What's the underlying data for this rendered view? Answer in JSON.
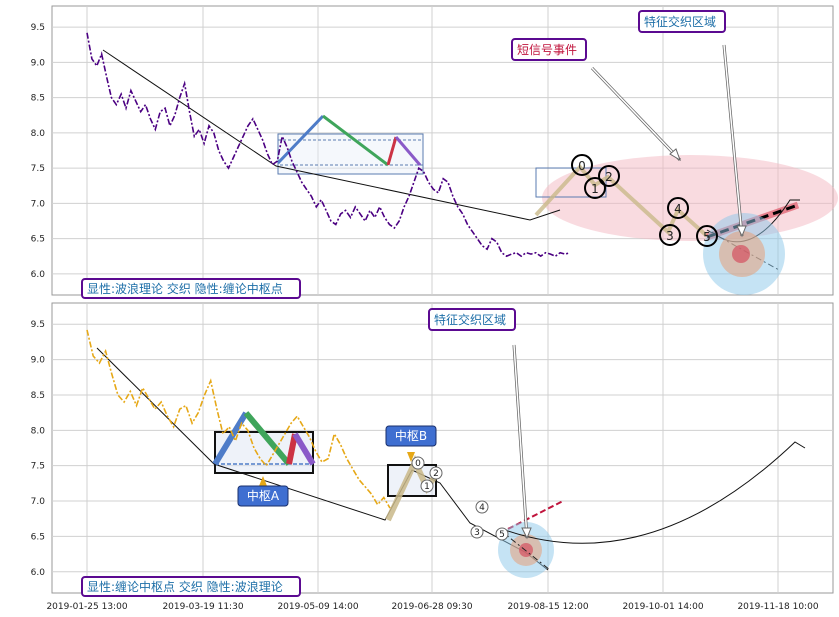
{
  "chart_data": [
    {
      "type": "line",
      "legend_text": "显性:波浪理论 交织 隐性:缠论中枢点",
      "annotations": [
        "特征交织区域",
        "短信号事件"
      ],
      "wave_labels": [
        "0",
        "1",
        "2",
        "3",
        "4",
        "5"
      ],
      "ylim": [
        5.7,
        9.8
      ],
      "yticks": [
        "6.0",
        "6.5",
        "7.0",
        "7.5",
        "8.0",
        "8.5",
        "9.0",
        "9.5"
      ],
      "price_series": {
        "name": "",
        "x": [
          0,
          2,
          4,
          6,
          8,
          10,
          12,
          14,
          16,
          18,
          20,
          22,
          24,
          26,
          28,
          30,
          32,
          34,
          36,
          38,
          40,
          42,
          44,
          46,
          48,
          50,
          52,
          54,
          56,
          58,
          60,
          62,
          64,
          66,
          68,
          70,
          72,
          74,
          76,
          78,
          80,
          82,
          84,
          86,
          88,
          90,
          92,
          94,
          96,
          98,
          100,
          102,
          104,
          106,
          108,
          110,
          112,
          114,
          116,
          118,
          120,
          122,
          124,
          126,
          128,
          130,
          132,
          134,
          136,
          138,
          140,
          142,
          144,
          146,
          148,
          150,
          152,
          154,
          156,
          158,
          160,
          162,
          164,
          166,
          168,
          170,
          172,
          174,
          176,
          178,
          180,
          182,
          184,
          186,
          188,
          190,
          192,
          194,
          196,
          198
        ],
        "y": [
          9.42,
          9.05,
          8.95,
          9.12,
          8.8,
          8.5,
          8.4,
          8.55,
          8.35,
          8.6,
          8.45,
          8.3,
          8.4,
          8.2,
          8.05,
          8.3,
          8.35,
          8.1,
          8.25,
          8.5,
          8.7,
          8.3,
          7.95,
          8.05,
          7.85,
          8.1,
          8.0,
          7.75,
          7.6,
          7.5,
          7.65,
          7.8,
          7.95,
          8.1,
          8.2,
          8.05,
          7.9,
          7.7,
          7.55,
          7.6,
          7.95,
          7.8,
          7.6,
          7.45,
          7.3,
          7.2,
          7.1,
          6.95,
          7.05,
          6.9,
          6.75,
          6.7,
          6.85,
          6.9,
          6.8,
          6.95,
          6.85,
          6.75,
          6.9,
          6.8,
          6.95,
          6.8,
          6.7,
          6.65,
          6.75,
          6.95,
          7.1,
          7.3,
          7.5,
          7.45,
          7.3,
          7.2,
          7.15,
          7.35,
          7.3,
          7.1,
          6.95,
          6.85,
          6.7,
          6.6,
          6.5,
          6.4,
          6.35,
          6.5,
          6.45,
          6.3,
          6.25,
          6.28,
          6.3,
          6.25,
          6.3,
          6.28,
          6.3,
          6.25,
          6.3,
          6.28,
          6.25,
          6.3,
          6.28,
          6.3
        ]
      }
    },
    {
      "type": "line",
      "legend_text": "显性:缠论中枢点 交织 隐性:波浪理论",
      "annotations": [
        "特征交织区域",
        "中枢A",
        "中枢B"
      ],
      "wave_labels": [
        "0",
        "1",
        "2",
        "3",
        "4",
        "5"
      ],
      "ylim": [
        5.7,
        9.8
      ],
      "yticks": [
        "6.0",
        "6.5",
        "7.0",
        "7.5",
        "8.0",
        "8.5",
        "9.0",
        "9.5"
      ],
      "xticks": [
        "2019-01-25 13:00",
        "2019-03-19 11:30",
        "2019-05-09 14:00",
        "2019-06-28 09:30",
        "2019-08-15 12:00",
        "2019-10-01 14:00",
        "2019-11-18 10:00"
      ],
      "price_series": {
        "name": "",
        "x": [
          0,
          2,
          4,
          6,
          8,
          10,
          12,
          14,
          16,
          18,
          20,
          22,
          24,
          26,
          28,
          30,
          32,
          34,
          36,
          38,
          40,
          42,
          44,
          46,
          48,
          50,
          52,
          54,
          56,
          58,
          60,
          62,
          64,
          66,
          68,
          70,
          72,
          74,
          76,
          78,
          80,
          82,
          84,
          86,
          88,
          90,
          92,
          94,
          96,
          98
        ],
        "y": [
          9.42,
          9.05,
          8.95,
          9.12,
          8.8,
          8.5,
          8.4,
          8.55,
          8.35,
          8.6,
          8.45,
          8.3,
          8.4,
          8.2,
          8.05,
          8.3,
          8.35,
          8.1,
          8.25,
          8.5,
          8.7,
          8.3,
          7.95,
          8.05,
          7.85,
          8.1,
          8.0,
          7.75,
          7.6,
          7.5,
          7.65,
          7.8,
          7.95,
          8.1,
          8.2,
          8.05,
          7.9,
          7.7,
          7.55,
          7.6,
          7.95,
          7.8,
          7.6,
          7.45,
          7.3,
          7.2,
          7.1,
          6.95,
          7.05,
          6.9
        ]
      }
    }
  ],
  "colors": {
    "panel1_series": "#4b0082",
    "panel2_series": "#e6a817",
    "label_border": "#5b0a91",
    "label_text_top": "#1e6fa8",
    "label_text_red": "#c0143c",
    "badge_fill": "#3f6fd1"
  }
}
